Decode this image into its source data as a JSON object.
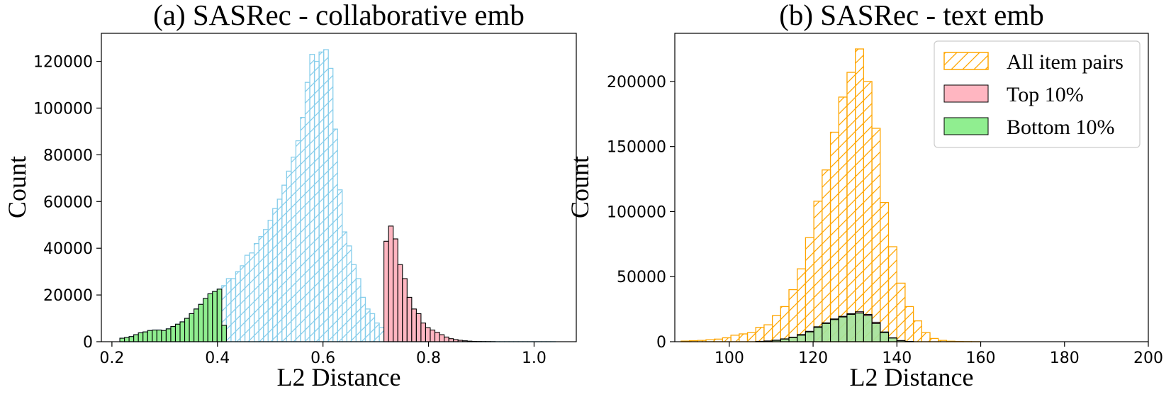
{
  "chart_data": [
    {
      "type": "bar",
      "title": "(a) SASRec - collaborative emb",
      "xlabel": "L2 Distance",
      "ylabel": "Count",
      "xlim": [
        0.18,
        1.08
      ],
      "ylim": [
        0,
        132000
      ],
      "xticks": [
        0.2,
        0.4,
        0.6,
        0.8,
        1.0
      ],
      "xtick_labels": [
        "0.2",
        "0.4",
        "0.6",
        "0.8",
        "1.0"
      ],
      "yticks": [
        0,
        20000,
        40000,
        60000,
        80000,
        100000,
        120000
      ],
      "ytick_labels": [
        "0",
        "20000",
        "40000",
        "60000",
        "80000",
        "100000",
        "120000"
      ],
      "bin_start": 0.215,
      "bin_width": 0.00878,
      "series": [
        {
          "name": "All item pairs",
          "style": "hatched",
          "color": "#87ceeb",
          "values": [
            1500,
            1800,
            2200,
            3000,
            3800,
            4200,
            4800,
            5000,
            5000,
            4800,
            5500,
            6500,
            7500,
            8500,
            10000,
            12000,
            14000,
            16000,
            18500,
            20500,
            21500,
            22500,
            24000,
            27000,
            27000,
            30000,
            32500,
            37000,
            38000,
            42000,
            45000,
            48000,
            52000,
            57000,
            61000,
            67000,
            73000,
            79000,
            86000,
            96000,
            111000,
            123000,
            120000,
            124000,
            125000,
            117000,
            91000,
            65000,
            47000,
            41000,
            33000,
            27000,
            19000,
            14000,
            12000,
            8000,
            6000,
            5000,
            4000,
            3000,
            2000,
            1300,
            900,
            600,
            400,
            250,
            150,
            100,
            80,
            60,
            40,
            30,
            20,
            20,
            20,
            20,
            20,
            20,
            20,
            20,
            20,
            20,
            20,
            20,
            20,
            20,
            20,
            20,
            20,
            20,
            20,
            20,
            20,
            20
          ]
        },
        {
          "name": "Bottom 10%",
          "style": "solid",
          "color": "#90ee90",
          "values": [
            1500,
            1800,
            2200,
            3000,
            3800,
            4200,
            4800,
            5000,
            5000,
            4800,
            5500,
            6500,
            7500,
            8500,
            10000,
            12000,
            14000,
            16000,
            18500,
            20500,
            21500,
            22500,
            7000
          ]
        },
        {
          "name": "Top 10%",
          "style": "solid",
          "color": "#ffb6c1",
          "offset_bins": 57,
          "values": [
            43000,
            49500,
            44000,
            33000,
            27000,
            19000,
            14000,
            12000,
            8000,
            6000,
            5000,
            4000,
            3000,
            2000,
            1300,
            900,
            600,
            400,
            250,
            150,
            100,
            80,
            60,
            40
          ]
        }
      ]
    },
    {
      "type": "bar",
      "title": "(b) SASRec - text emb",
      "xlabel": "L2 Distance",
      "ylabel": "Count",
      "xlim": [
        87,
        200
      ],
      "ylim": [
        0,
        237000
      ],
      "xticks": [
        100,
        120,
        140,
        160,
        180,
        200
      ],
      "xtick_labels": [
        "100",
        "120",
        "140",
        "160",
        "180",
        "200"
      ],
      "yticks": [
        0,
        50000,
        100000,
        150000,
        200000
      ],
      "ytick_labels": [
        "0",
        "50000",
        "100000",
        "150000",
        "200000"
      ],
      "bin_start": 88.5,
      "bin_width": 1.98,
      "legend": {
        "position": "upper-right",
        "entries": [
          {
            "label": "All item pairs",
            "style": "hatched",
            "color": "#ffa500"
          },
          {
            "label": "Top 10%",
            "style": "solid",
            "color": "#ffb6c1"
          },
          {
            "label": "Bottom 10%",
            "style": "solid",
            "color": "#90ee90"
          }
        ]
      },
      "series": [
        {
          "name": "All item pairs",
          "style": "hatched",
          "color": "#ffa500",
          "values": [
            500,
            800,
            1000,
            1500,
            2000,
            3000,
            5000,
            6000,
            7000,
            11000,
            13000,
            20000,
            27000,
            40000,
            56000,
            80000,
            108000,
            132000,
            161000,
            188000,
            207000,
            225000,
            200000,
            164000,
            107000,
            73000,
            45000,
            27000,
            16000,
            7000,
            2500,
            1000,
            400,
            200,
            100,
            50
          ]
        },
        {
          "name": "Top 10%",
          "style": "solid",
          "color": "#ffb6c1",
          "offset_bins": 9,
          "values": [
            300,
            600,
            1200,
            2200,
            3500,
            5500,
            8000,
            11500,
            14500,
            17500,
            19500,
            21500,
            23000,
            21000,
            15000,
            7500,
            3000,
            900,
            250
          ]
        },
        {
          "name": "Bottom 10%",
          "style": "solid",
          "color": "#90ee90",
          "offset_bins": 9,
          "values": [
            200,
            500,
            1000,
            2000,
            3200,
            5000,
            7500,
            11000,
            14000,
            17000,
            19000,
            21000,
            22000,
            20000,
            14000,
            7000,
            2800,
            800,
            200
          ]
        }
      ]
    }
  ]
}
